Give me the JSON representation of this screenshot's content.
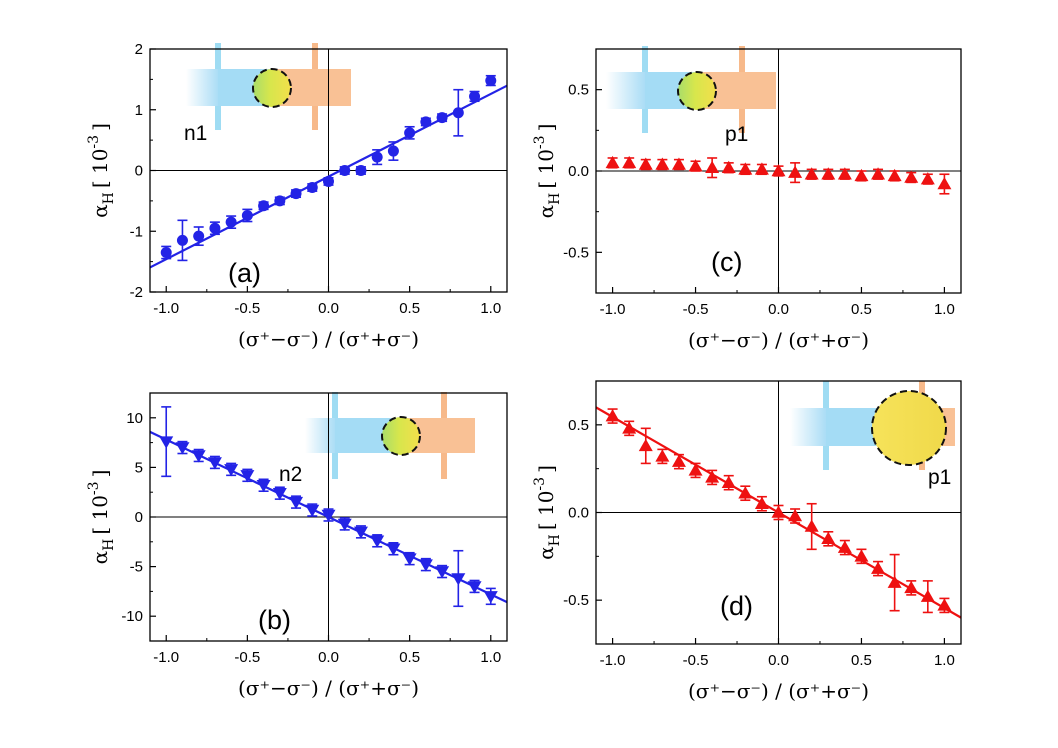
{
  "chart_data": [
    {
      "id": "a",
      "type": "scatter",
      "panel_label": "(a)",
      "sample_label": "n1",
      "xlabel": "(σ⁺−σ⁻) / (σ⁺+σ⁻)",
      "ylabel_main": "α",
      "ylabel_sub": "H",
      "ylabel_unit": "[ 10",
      "ylabel_exp": "-3",
      "ylabel_close": "]",
      "xlim": [
        -1.1,
        1.1
      ],
      "ylim": [
        -2,
        2
      ],
      "xticks": [
        "-1.0",
        "-0.5",
        "0.0",
        "0.5",
        "1.0"
      ],
      "xtick_values": [
        -1.0,
        -0.5,
        0.0,
        0.5,
        1.0
      ],
      "yticks": [
        "-2",
        "-1",
        "0",
        "1",
        "2"
      ],
      "ytick_values": [
        -2,
        -1,
        0,
        1,
        2
      ],
      "marker": "circle",
      "color": "#2323e6",
      "fit": {
        "slope": 1.36,
        "intercept": -0.1
      },
      "series": [
        {
          "x": [
            -1.0,
            -0.9,
            -0.8,
            -0.7,
            -0.6,
            -0.5,
            -0.4,
            -0.3,
            -0.2,
            -0.1,
            0.0,
            0.1,
            0.2,
            0.3,
            0.4,
            0.5,
            0.6,
            0.7,
            0.8,
            0.9,
            1.0
          ],
          "y": [
            -1.35,
            -1.15,
            -1.08,
            -0.95,
            -0.85,
            -0.74,
            -0.58,
            -0.5,
            -0.38,
            -0.28,
            -0.18,
            0.0,
            0.0,
            0.22,
            0.32,
            0.62,
            0.8,
            0.87,
            0.95,
            1.22,
            1.48
          ],
          "err": [
            0.1,
            0.33,
            0.15,
            0.1,
            0.1,
            0.1,
            0.06,
            0.06,
            0.06,
            0.06,
            0.06,
            0.06,
            0.06,
            0.12,
            0.15,
            0.1,
            0.06,
            0.06,
            0.38,
            0.08,
            0.08
          ]
        }
      ],
      "inset": {
        "circle_color": "#e7e34a",
        "circle_split": "gradient"
      }
    },
    {
      "id": "c",
      "type": "scatter",
      "panel_label": "(c)",
      "sample_label": "p1",
      "xlabel": "(σ⁺−σ⁻) / (σ⁺+σ⁻)",
      "ylabel_main": "α",
      "ylabel_sub": "H",
      "ylabel_unit": "[ 10",
      "ylabel_exp": "-3",
      "ylabel_close": "]",
      "xlim": [
        -1.1,
        1.1
      ],
      "ylim": [
        -0.75,
        0.75
      ],
      "xticks": [
        "-1.0",
        "-0.5",
        "0.0",
        "0.5",
        "1.0"
      ],
      "xtick_values": [
        -1.0,
        -0.5,
        0.0,
        0.5,
        1.0
      ],
      "yticks": [
        "-0.5",
        "0.0",
        "0.5"
      ],
      "ytick_values": [
        -0.5,
        0.0,
        0.5
      ],
      "marker": "triangle-up",
      "color": "#ee1111",
      "fit": null,
      "series": [
        {
          "x": [
            -1.0,
            -0.9,
            -0.8,
            -0.7,
            -0.6,
            -0.5,
            -0.4,
            -0.3,
            -0.2,
            -0.1,
            0.0,
            0.1,
            0.2,
            0.3,
            0.4,
            0.5,
            0.6,
            0.7,
            0.8,
            0.9,
            1.0
          ],
          "y": [
            0.05,
            0.05,
            0.04,
            0.04,
            0.04,
            0.03,
            0.02,
            0.02,
            0.01,
            0.01,
            0.0,
            -0.01,
            -0.02,
            -0.02,
            -0.02,
            -0.03,
            -0.02,
            -0.03,
            -0.04,
            -0.05,
            -0.08
          ],
          "err": [
            0.03,
            0.03,
            0.03,
            0.03,
            0.03,
            0.03,
            0.06,
            0.03,
            0.03,
            0.03,
            0.03,
            0.06,
            0.03,
            0.03,
            0.03,
            0.03,
            0.03,
            0.03,
            0.03,
            0.03,
            0.06
          ]
        }
      ],
      "inset": {
        "circle_color": "#e7e34a",
        "circle_split": "gradient"
      }
    },
    {
      "id": "b",
      "type": "scatter",
      "panel_label": "(b)",
      "sample_label": "n2",
      "xlabel": "(σ⁺−σ⁻) / (σ⁺+σ⁻)",
      "ylabel_main": "α",
      "ylabel_sub": "H",
      "ylabel_unit": "[ 10",
      "ylabel_exp": "-3",
      "ylabel_close": "]",
      "xlim": [
        -1.1,
        1.1
      ],
      "ylim": [
        -12.5,
        12.5
      ],
      "xticks": [
        "-1.0",
        "-0.5",
        "0.0",
        "0.5",
        "1.0"
      ],
      "xtick_values": [
        -1.0,
        -0.5,
        0.0,
        0.5,
        1.0
      ],
      "yticks": [
        "-10",
        "-5",
        "0",
        "5",
        "10"
      ],
      "ytick_values": [
        -10,
        -5,
        0,
        5,
        10
      ],
      "marker": "triangle-down",
      "color": "#2323e6",
      "fit": {
        "slope": -7.8,
        "intercept": 0.0
      },
      "series": [
        {
          "x": [
            -1.0,
            -0.9,
            -0.8,
            -0.7,
            -0.6,
            -0.5,
            -0.4,
            -0.3,
            -0.2,
            -0.1,
            0.0,
            0.1,
            0.2,
            0.3,
            0.4,
            0.5,
            0.6,
            0.7,
            0.8,
            0.9,
            1.0
          ],
          "y": [
            7.6,
            7.0,
            6.2,
            5.5,
            4.8,
            4.2,
            3.2,
            2.4,
            1.5,
            0.7,
            0.2,
            -0.7,
            -1.5,
            -2.4,
            -3.2,
            -4.2,
            -4.8,
            -5.5,
            -6.2,
            -7.0,
            -8.0
          ],
          "err": [
            3.5,
            0.6,
            0.6,
            0.6,
            0.6,
            0.6,
            0.6,
            0.6,
            0.6,
            0.6,
            0.6,
            0.6,
            0.6,
            0.6,
            0.6,
            0.6,
            0.6,
            0.6,
            2.8,
            0.6,
            0.8
          ]
        }
      ],
      "inset": {
        "circle_color": "#e7e34a",
        "circle_split": "gradient"
      }
    },
    {
      "id": "d",
      "type": "scatter",
      "panel_label": "(d)",
      "sample_label": "p1",
      "xlabel": "(σ⁺−σ⁻) / (σ⁺+σ⁻)",
      "ylabel_main": "α",
      "ylabel_sub": "H",
      "ylabel_unit": "[ 10",
      "ylabel_exp": "-3",
      "ylabel_close": "]",
      "xlim": [
        -1.1,
        1.1
      ],
      "ylim": [
        -0.75,
        0.75
      ],
      "xticks": [
        "-1.0",
        "-0.5",
        "0.0",
        "0.5",
        "1.0"
      ],
      "xtick_values": [
        -1.0,
        -0.5,
        0.0,
        0.5,
        1.0
      ],
      "yticks": [
        "-0.5",
        "0.0",
        "0.5"
      ],
      "ytick_values": [
        -0.5,
        0.0,
        0.5
      ],
      "marker": "triangle-up",
      "color": "#ee1111",
      "fit": {
        "slope": -0.545,
        "intercept": 0.0
      },
      "series": [
        {
          "x": [
            -1.0,
            -0.9,
            -0.8,
            -0.7,
            -0.6,
            -0.5,
            -0.4,
            -0.3,
            -0.2,
            -0.1,
            0.0,
            0.1,
            0.2,
            0.3,
            0.4,
            0.5,
            0.6,
            0.7,
            0.8,
            0.9,
            1.0
          ],
          "y": [
            0.55,
            0.48,
            0.38,
            0.32,
            0.29,
            0.24,
            0.2,
            0.17,
            0.11,
            0.05,
            0.0,
            -0.02,
            -0.08,
            -0.15,
            -0.2,
            -0.25,
            -0.32,
            -0.4,
            -0.43,
            -0.48,
            -0.53
          ],
          "err": [
            0.04,
            0.04,
            0.1,
            0.04,
            0.04,
            0.04,
            0.04,
            0.04,
            0.04,
            0.04,
            0.04,
            0.04,
            0.13,
            0.04,
            0.04,
            0.04,
            0.04,
            0.16,
            0.04,
            0.09,
            0.04
          ]
        }
      ],
      "inset": {
        "circle_color": "#f3e04a",
        "circle_split": "solid"
      }
    }
  ]
}
